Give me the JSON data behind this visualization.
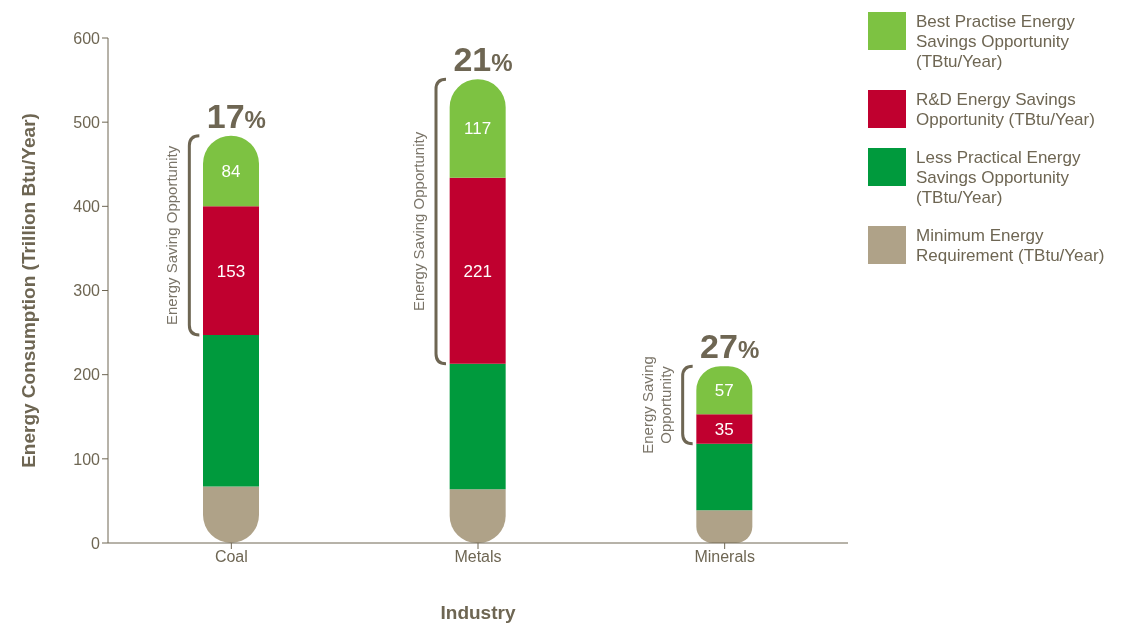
{
  "chart_data": {
    "type": "bar",
    "stacked": true,
    "xlabel": "Industry",
    "ylabel": "Energy Consumption (Trillion Btu/Year)",
    "categories": [
      "Coal",
      "Metals",
      "Minerals"
    ],
    "series": [
      {
        "name": "Minimum Energy Requirement (TBtu/Year)",
        "color": "#afa288",
        "values": [
          67,
          64,
          39
        ]
      },
      {
        "name": "Less Practical Energy Savings Opportunity (TBtu/Year)",
        "color": "#009a3d",
        "values": [
          180,
          149,
          79
        ]
      },
      {
        "name": "R&D Energy Savings Opportunity (TBtu/Year)",
        "color": "#c0002f",
        "values": [
          153,
          221,
          35
        ],
        "value_labels": [
          "153",
          "221",
          "35"
        ]
      },
      {
        "name": "Best Practise Energy Savings Opportunity (TBtu/Year)",
        "color": "#7dc242",
        "values": [
          84,
          117,
          57
        ],
        "value_labels": [
          "84",
          "117",
          "57"
        ]
      }
    ],
    "ylim": [
      0,
      600
    ],
    "yticks": [
      0,
      100,
      200,
      300,
      400,
      500,
      600
    ],
    "grid": false,
    "legend": "right",
    "annotations": [
      {
        "text": "17%",
        "x": "Coal",
        "y": 484
      },
      {
        "text": "21%",
        "x": "Metals",
        "y": 551
      },
      {
        "text": "27%",
        "x": "Minerals",
        "y": 210
      },
      "Energy Saving Opportunity",
      "Energy Saving Opportunity",
      "Energy Saving Opportunity"
    ]
  }
}
